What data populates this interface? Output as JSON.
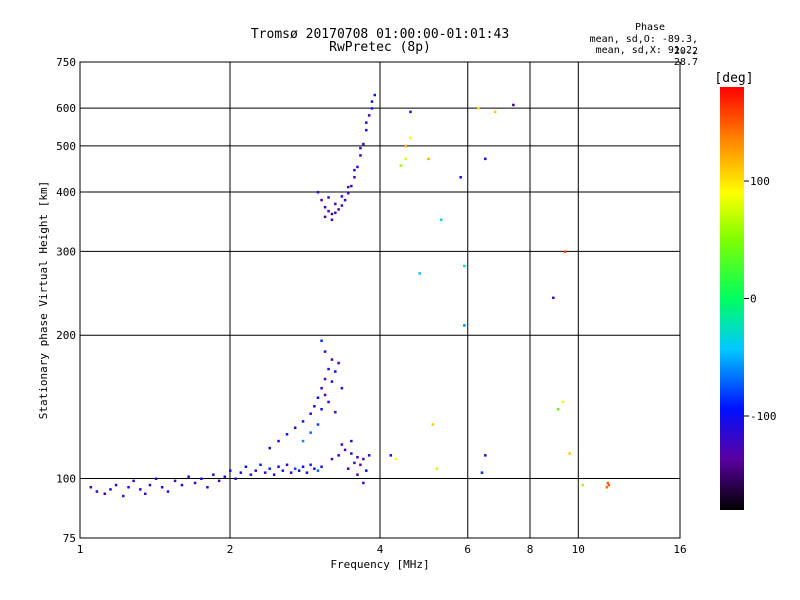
{
  "header": {
    "title_line1": "Tromsø 20170708 01:00:00-01:01:43",
    "title_line2": "RwPretec (8p)",
    "phase_label": "Phase",
    "phase_o": "mean, sd,O: -89.3, 20.2",
    "phase_x": "mean, sd,X:  91.2, 28.7"
  },
  "chart_data": {
    "type": "scatter",
    "xlabel": "Frequency [MHz]",
    "ylabel": "Stationary phase Virtual Height [km]",
    "x_scale": "log",
    "y_scale": "log",
    "xlim": [
      1,
      16
    ],
    "ylim": [
      75,
      750
    ],
    "x_ticks": [
      1,
      2,
      4,
      6,
      8,
      10,
      16
    ],
    "x_tick_labels": [
      "1",
      "2",
      "4",
      "6",
      "8",
      "10",
      "16"
    ],
    "y_ticks": [
      75,
      100,
      200,
      300,
      400,
      500,
      600,
      750
    ],
    "y_tick_labels": [
      "75",
      "100",
      "200",
      "300",
      "400",
      "500",
      "600",
      "750"
    ],
    "grid": true,
    "colorbar": {
      "label": "[deg]",
      "range": [
        -180,
        180
      ],
      "ticks": [
        -100,
        0,
        100
      ],
      "tick_labels": [
        "-100",
        "0",
        "100"
      ]
    },
    "series": [
      {
        "values": [
          [
            1.05,
            96,
            -120
          ],
          [
            1.08,
            94,
            -115
          ],
          [
            1.12,
            93,
            -125
          ],
          [
            1.15,
            95,
            -110
          ],
          [
            1.18,
            97,
            -118
          ],
          [
            1.22,
            92,
            -122
          ],
          [
            1.25,
            96,
            -108
          ],
          [
            1.28,
            99,
            -115
          ],
          [
            1.32,
            95,
            -125
          ],
          [
            1.35,
            93,
            -112
          ],
          [
            1.38,
            97,
            -120
          ],
          [
            1.42,
            100,
            -116
          ],
          [
            1.46,
            96,
            -110
          ],
          [
            1.5,
            94,
            -118
          ],
          [
            1.55,
            99,
            -124
          ],
          [
            1.6,
            97,
            -105
          ],
          [
            1.65,
            101,
            -112
          ],
          [
            1.7,
            98,
            -120
          ],
          [
            1.75,
            100,
            -95
          ],
          [
            1.8,
            96,
            -118
          ],
          [
            1.85,
            102,
            -108
          ],
          [
            1.9,
            99,
            -125
          ],
          [
            1.95,
            101,
            -113
          ],
          [
            2.0,
            104,
            -102
          ],
          [
            2.05,
            100,
            -118
          ],
          [
            2.1,
            103,
            -110
          ],
          [
            2.15,
            106,
            -96
          ],
          [
            2.2,
            102,
            -115
          ],
          [
            2.25,
            104,
            -120
          ],
          [
            2.3,
            107,
            -90
          ],
          [
            2.35,
            103,
            -112
          ],
          [
            2.4,
            105,
            -85
          ],
          [
            2.45,
            102,
            -118
          ],
          [
            2.5,
            106,
            -104
          ],
          [
            2.55,
            104,
            -92
          ],
          [
            2.6,
            107,
            -115
          ],
          [
            2.65,
            103,
            -120
          ],
          [
            2.7,
            105,
            -80
          ],
          [
            2.75,
            104,
            -110
          ],
          [
            2.8,
            106,
            -95
          ],
          [
            2.85,
            103,
            -118
          ],
          [
            2.9,
            107,
            -88
          ],
          [
            2.95,
            105,
            -112
          ],
          [
            3.0,
            104,
            -70
          ],
          [
            3.05,
            106,
            -105
          ]
        ]
      },
      {
        "values": [
          [
            2.4,
            116,
            -112
          ],
          [
            2.5,
            120,
            -105
          ],
          [
            2.6,
            124,
            -98
          ],
          [
            2.7,
            128,
            -115
          ],
          [
            2.8,
            132,
            -90
          ],
          [
            2.9,
            137,
            -120
          ],
          [
            2.95,
            142,
            -108
          ],
          [
            3.0,
            148,
            -95
          ],
          [
            3.05,
            155,
            -118
          ],
          [
            3.1,
            162,
            -130
          ],
          [
            3.15,
            170,
            -110
          ],
          [
            3.2,
            178,
            -125
          ],
          [
            3.1,
            150,
            -140
          ],
          [
            3.05,
            140,
            -100
          ],
          [
            3.15,
            145,
            -118
          ],
          [
            3.2,
            160,
            -105
          ],
          [
            3.25,
            168,
            -95
          ],
          [
            3.0,
            130,
            -80
          ],
          [
            2.9,
            125,
            -70
          ],
          [
            2.8,
            120,
            -60
          ],
          [
            3.1,
            185,
            -112
          ],
          [
            3.05,
            195,
            -85
          ],
          [
            3.3,
            175,
            -120
          ],
          [
            3.35,
            155,
            -110
          ],
          [
            3.25,
            138,
            -125
          ]
        ]
      },
      {
        "values": [
          [
            3.2,
            110,
            -130
          ],
          [
            3.3,
            112,
            -120
          ],
          [
            3.4,
            115,
            -135
          ],
          [
            3.5,
            113,
            -110
          ],
          [
            3.6,
            111,
            -125
          ],
          [
            3.7,
            110,
            -140
          ],
          [
            3.8,
            112,
            -115
          ],
          [
            3.45,
            105,
            -128
          ],
          [
            3.55,
            108,
            -118
          ],
          [
            3.65,
            107,
            -132
          ],
          [
            3.75,
            104,
            -100
          ],
          [
            3.35,
            118,
            -122
          ],
          [
            3.5,
            120,
            -112
          ],
          [
            3.6,
            102,
            -138
          ],
          [
            3.7,
            98,
            -120
          ]
        ]
      },
      {
        "values": [
          [
            3.0,
            400,
            -120
          ],
          [
            3.05,
            385,
            -135
          ],
          [
            3.1,
            372,
            -128
          ],
          [
            3.15,
            365,
            -140
          ],
          [
            3.2,
            360,
            -125
          ],
          [
            3.25,
            362,
            -118
          ],
          [
            3.3,
            368,
            -130
          ],
          [
            3.35,
            375,
            -122
          ],
          [
            3.4,
            385,
            -110
          ],
          [
            3.45,
            398,
            -126
          ],
          [
            3.5,
            412,
            -118
          ],
          [
            3.55,
            430,
            -130
          ],
          [
            3.6,
            452,
            -112
          ],
          [
            3.65,
            478,
            -125
          ],
          [
            3.7,
            505,
            -115
          ],
          [
            3.75,
            540,
            -108
          ],
          [
            3.8,
            580,
            -120
          ],
          [
            3.85,
            620,
            -100
          ],
          [
            3.9,
            640,
            -95
          ],
          [
            3.15,
            390,
            -115
          ],
          [
            3.25,
            378,
            -138
          ],
          [
            3.35,
            392,
            -120
          ],
          [
            3.45,
            410,
            -132
          ],
          [
            3.55,
            445,
            -124
          ],
          [
            3.65,
            495,
            -110
          ],
          [
            3.75,
            560,
            -118
          ],
          [
            3.85,
            600,
            -90
          ],
          [
            3.1,
            355,
            -140
          ],
          [
            3.2,
            350,
            -130
          ]
        ]
      },
      {
        "values": [
          [
            4.5,
            500,
            120
          ],
          [
            4.5,
            470,
            80
          ],
          [
            4.4,
            455,
            60
          ],
          [
            4.6,
            520,
            95
          ],
          [
            5.0,
            470,
            120
          ],
          [
            4.6,
            590,
            -112
          ],
          [
            4.8,
            270,
            -40
          ],
          [
            5.3,
            350,
            -30
          ],
          [
            5.8,
            430,
            -105
          ],
          [
            5.9,
            280,
            -20
          ],
          [
            5.9,
            210,
            -60
          ],
          [
            6.3,
            600,
            100
          ],
          [
            6.5,
            470,
            -100
          ],
          [
            6.8,
            590,
            110
          ],
          [
            7.4,
            610,
            -150
          ],
          [
            8.9,
            240,
            -130
          ],
          [
            9.1,
            140,
            40
          ],
          [
            9.3,
            145,
            95
          ],
          [
            9.4,
            300,
            160
          ],
          [
            9.6,
            113,
            110
          ],
          [
            6.5,
            112,
            -110
          ],
          [
            6.4,
            103,
            -90
          ],
          [
            5.2,
            105,
            70
          ],
          [
            5.1,
            130,
            110
          ],
          [
            4.3,
            110,
            90
          ],
          [
            4.2,
            112,
            -100
          ],
          [
            10.2,
            97,
            60
          ],
          [
            11.4,
            96,
            140
          ],
          [
            11.5,
            97,
            150
          ],
          [
            11.45,
            98,
            145
          ]
        ]
      }
    ]
  }
}
